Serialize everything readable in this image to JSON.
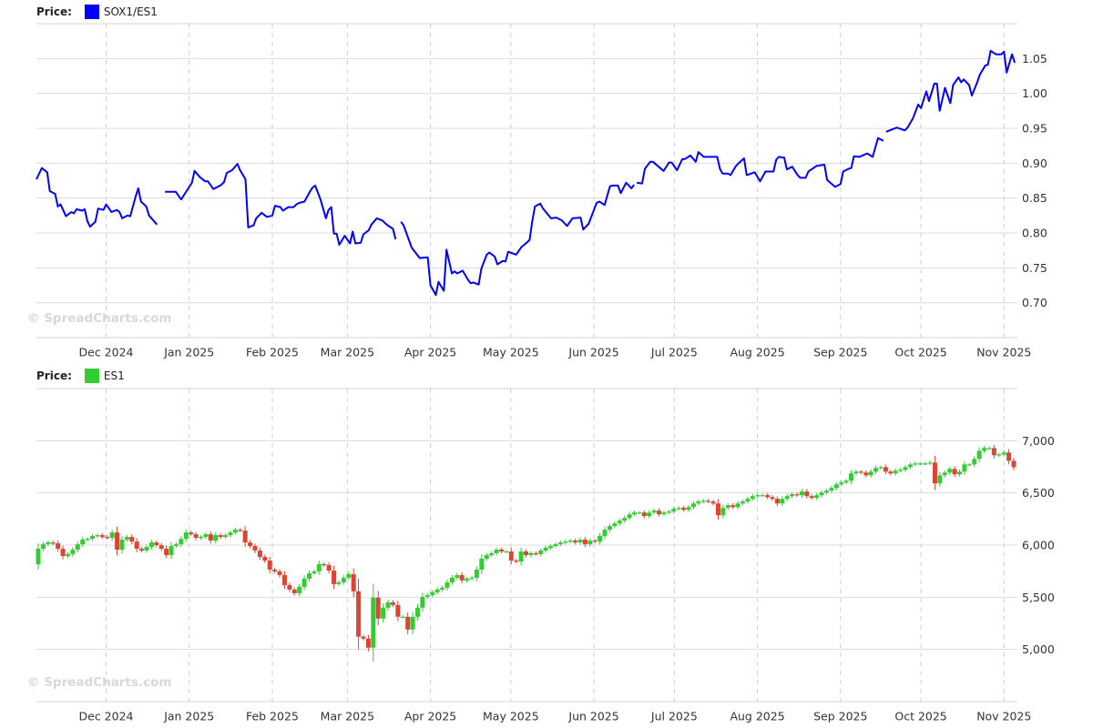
{
  "chart_data": [
    {
      "type": "line",
      "legend_label": "Price:",
      "title": "SOX1/ES1",
      "color": "#0000ff",
      "watermark": "© SpreadCharts.com",
      "start_date": "2024-11-05",
      "end_date": "2025-11-06",
      "x_unit": "days since start_date",
      "ylim": [
        0.65,
        1.1
      ],
      "y_ticks": [
        {
          "value": 0.7,
          "label": "0.70"
        },
        {
          "value": 0.75,
          "label": "0.75"
        },
        {
          "value": 0.8,
          "label": "0.80"
        },
        {
          "value": 0.85,
          "label": "0.85"
        },
        {
          "value": 0.9,
          "label": "0.90"
        },
        {
          "value": 0.95,
          "label": "0.95"
        },
        {
          "value": 1.0,
          "label": "1.00"
        },
        {
          "value": 1.05,
          "label": "1.05"
        }
      ],
      "x_ticks": [
        {
          "date": "2024-12-01",
          "label": "Dec 2024"
        },
        {
          "date": "2025-01-01",
          "label": "Jan 2025"
        },
        {
          "date": "2025-02-01",
          "label": "Feb 2025"
        },
        {
          "date": "2025-03-01",
          "label": "Mar 2025"
        },
        {
          "date": "2025-04-01",
          "label": "Apr 2025"
        },
        {
          "date": "2025-05-01",
          "label": "May 2025"
        },
        {
          "date": "2025-06-01",
          "label": "Jun 2025"
        },
        {
          "date": "2025-07-01",
          "label": "Jul 2025"
        },
        {
          "date": "2025-08-01",
          "label": "Aug 2025"
        },
        {
          "date": "2025-09-01",
          "label": "Sep 2025"
        },
        {
          "date": "2025-10-01",
          "label": "Oct 2025"
        },
        {
          "date": "2025-11-01",
          "label": "Nov 2025"
        }
      ],
      "segments": [
        [
          [
            0,
            0.877
          ],
          [
            2,
            0.893
          ],
          [
            4,
            0.887
          ],
          [
            5,
            0.86
          ],
          [
            7,
            0.856
          ],
          [
            8,
            0.838
          ],
          [
            9,
            0.841
          ],
          [
            11,
            0.824
          ],
          [
            13,
            0.83
          ],
          [
            14,
            0.828
          ],
          [
            15,
            0.834
          ],
          [
            17,
            0.832
          ],
          [
            18,
            0.834
          ],
          [
            19,
            0.817
          ],
          [
            20,
            0.809
          ],
          [
            22,
            0.816
          ],
          [
            23,
            0.835
          ],
          [
            25,
            0.833
          ],
          [
            26,
            0.841
          ],
          [
            28,
            0.83
          ],
          [
            30,
            0.833
          ],
          [
            31,
            0.83
          ],
          [
            32,
            0.821
          ],
          [
            34,
            0.825
          ],
          [
            35,
            0.824
          ],
          [
            37,
            0.852
          ],
          [
            38,
            0.864
          ],
          [
            39,
            0.845
          ],
          [
            41,
            0.838
          ],
          [
            42,
            0.825
          ],
          [
            45,
            0.812
          ]
        ],
        [
          [
            48,
            0.859
          ],
          [
            52,
            0.859
          ],
          [
            54,
            0.848
          ],
          [
            56,
            0.86
          ],
          [
            58,
            0.872
          ],
          [
            59,
            0.889
          ],
          [
            61,
            0.88
          ],
          [
            63,
            0.874
          ],
          [
            64,
            0.874
          ],
          [
            66,
            0.863
          ],
          [
            67,
            0.865
          ],
          [
            69,
            0.869
          ],
          [
            70,
            0.873
          ],
          [
            71,
            0.886
          ],
          [
            73,
            0.89
          ],
          [
            75,
            0.899
          ],
          [
            76,
            0.89
          ],
          [
            78,
            0.877
          ],
          [
            79,
            0.808
          ],
          [
            81,
            0.811
          ],
          [
            82,
            0.821
          ],
          [
            84,
            0.829
          ],
          [
            86,
            0.823
          ],
          [
            88,
            0.825
          ],
          [
            89,
            0.839
          ],
          [
            91,
            0.837
          ],
          [
            92,
            0.832
          ],
          [
            94,
            0.837
          ],
          [
            96,
            0.837
          ],
          [
            97,
            0.841
          ],
          [
            98,
            0.843
          ],
          [
            100,
            0.845
          ],
          [
            102,
            0.859
          ],
          [
            103,
            0.865
          ],
          [
            104,
            0.868
          ],
          [
            106,
            0.848
          ],
          [
            108,
            0.821
          ],
          [
            109,
            0.833
          ],
          [
            110,
            0.837
          ],
          [
            111,
            0.799
          ],
          [
            112,
            0.799
          ],
          [
            113,
            0.783
          ],
          [
            115,
            0.796
          ],
          [
            117,
            0.785
          ],
          [
            118,
            0.802
          ],
          [
            119,
            0.785
          ],
          [
            121,
            0.786
          ],
          [
            122,
            0.798
          ],
          [
            124,
            0.804
          ],
          [
            125,
            0.812
          ],
          [
            127,
            0.821
          ],
          [
            129,
            0.818
          ],
          [
            131,
            0.811
          ],
          [
            133,
            0.806
          ],
          [
            134,
            0.791
          ]
        ],
        [
          [
            136,
            0.816
          ],
          [
            137,
            0.811
          ],
          [
            140,
            0.779
          ],
          [
            143,
            0.764
          ],
          [
            146,
            0.765
          ],
          [
            147,
            0.725
          ],
          [
            149,
            0.711
          ],
          [
            150,
            0.73
          ],
          [
            152,
            0.717
          ],
          [
            153,
            0.776
          ],
          [
            155,
            0.742
          ],
          [
            156,
            0.745
          ],
          [
            157,
            0.742
          ],
          [
            159,
            0.746
          ],
          [
            161,
            0.733
          ],
          [
            162,
            0.728
          ],
          [
            163,
            0.729
          ],
          [
            165,
            0.726
          ],
          [
            166,
            0.749
          ],
          [
            168,
            0.769
          ],
          [
            169,
            0.772
          ],
          [
            171,
            0.766
          ],
          [
            172,
            0.755
          ],
          [
            174,
            0.76
          ],
          [
            175,
            0.759
          ],
          [
            176,
            0.773
          ],
          [
            179,
            0.769
          ],
          [
            181,
            0.78
          ],
          [
            182,
            0.783
          ],
          [
            184,
            0.79
          ],
          [
            185,
            0.817
          ],
          [
            186,
            0.838
          ],
          [
            188,
            0.842
          ],
          [
            189,
            0.835
          ],
          [
            192,
            0.821
          ],
          [
            194,
            0.822
          ],
          [
            196,
            0.818
          ],
          [
            198,
            0.81
          ],
          [
            200,
            0.821
          ],
          [
            203,
            0.822
          ],
          [
            204,
            0.805
          ],
          [
            206,
            0.813
          ],
          [
            208,
            0.833
          ],
          [
            209,
            0.843
          ],
          [
            210,
            0.845
          ],
          [
            212,
            0.84
          ],
          [
            214,
            0.867
          ],
          [
            215,
            0.868
          ],
          [
            217,
            0.868
          ],
          [
            218,
            0.857
          ],
          [
            220,
            0.872
          ],
          [
            222,
            0.864
          ],
          [
            223,
            0.869
          ]
        ],
        [
          [
            224,
            0.872
          ],
          [
            226,
            0.871
          ],
          [
            227,
            0.892
          ],
          [
            229,
            0.902
          ],
          [
            230,
            0.902
          ],
          [
            234,
            0.889
          ],
          [
            236,
            0.901
          ],
          [
            237,
            0.901
          ],
          [
            239,
            0.89
          ],
          [
            241,
            0.906
          ],
          [
            242,
            0.906
          ],
          [
            244,
            0.911
          ],
          [
            246,
            0.902
          ],
          [
            247,
            0.916
          ],
          [
            249,
            0.909
          ],
          [
            254,
            0.909
          ],
          [
            255,
            0.892
          ],
          [
            256,
            0.885
          ],
          [
            258,
            0.885
          ],
          [
            259,
            0.883
          ],
          [
            261,
            0.896
          ],
          [
            262,
            0.9
          ],
          [
            264,
            0.907
          ],
          [
            265,
            0.883
          ],
          [
            268,
            0.887
          ],
          [
            270,
            0.874
          ],
          [
            272,
            0.888
          ],
          [
            275,
            0.888
          ],
          [
            276,
            0.905
          ],
          [
            277,
            0.909
          ],
          [
            279,
            0.908
          ],
          [
            280,
            0.891
          ],
          [
            282,
            0.895
          ],
          [
            284,
            0.883
          ],
          [
            285,
            0.879
          ],
          [
            287,
            0.879
          ],
          [
            288,
            0.888
          ],
          [
            291,
            0.896
          ],
          [
            294,
            0.898
          ],
          [
            295,
            0.876
          ],
          [
            298,
            0.866
          ],
          [
            300,
            0.87
          ],
          [
            301,
            0.888
          ],
          [
            303,
            0.892
          ],
          [
            304,
            0.893
          ],
          [
            305,
            0.91
          ],
          [
            307,
            0.909
          ],
          [
            310,
            0.914
          ],
          [
            312,
            0.909
          ],
          [
            314,
            0.936
          ],
          [
            316,
            0.932
          ]
        ],
        [
          [
            317,
            0.945
          ],
          [
            321,
            0.951
          ],
          [
            324,
            0.947
          ],
          [
            325,
            0.951
          ],
          [
            327,
            0.964
          ],
          [
            329,
            0.984
          ],
          [
            330,
            0.979
          ],
          [
            332,
            1.003
          ],
          [
            333,
            0.989
          ],
          [
            335,
            1.014
          ],
          [
            336,
            1.014
          ],
          [
            337,
            0.975
          ],
          [
            339,
            1.008
          ],
          [
            341,
            0.986
          ],
          [
            342,
            1.012
          ],
          [
            344,
            1.023
          ],
          [
            345,
            1.016
          ],
          [
            346,
            1.02
          ],
          [
            348,
            1.012
          ],
          [
            349,
            0.997
          ],
          [
            351,
            1.016
          ],
          [
            352,
            1.027
          ],
          [
            354,
            1.04
          ],
          [
            355,
            1.041
          ],
          [
            356,
            1.061
          ],
          [
            358,
            1.056
          ],
          [
            360,
            1.056
          ],
          [
            361,
            1.06
          ],
          [
            362,
            1.03
          ],
          [
            364,
            1.056
          ],
          [
            365,
            1.044
          ]
        ]
      ]
    },
    {
      "type": "candlestick",
      "legend_label": "Price:",
      "title": "ES1",
      "color": "#33cc33",
      "up_color": "#33cc33",
      "down_color": "#dd4433",
      "watermark": "© SpreadCharts.com",
      "start_date": "2024-11-05",
      "end_date": "2025-11-06",
      "ylim": [
        4500,
        7500
      ],
      "y_ticks": [
        {
          "value": 5000,
          "label": "5,000"
        },
        {
          "value": 5500,
          "label": "5,500"
        },
        {
          "value": 6000,
          "label": "6,000"
        },
        {
          "value": 6500,
          "label": "6,500"
        },
        {
          "value": 7000,
          "label": "7,000"
        }
      ],
      "x_ticks": [
        {
          "date": "2024-12-01",
          "label": "Dec 2024"
        },
        {
          "date": "2025-01-01",
          "label": "Jan 2025"
        },
        {
          "date": "2025-02-01",
          "label": "Feb 2025"
        },
        {
          "date": "2025-03-01",
          "label": "Mar 2025"
        },
        {
          "date": "2025-04-01",
          "label": "Apr 2025"
        },
        {
          "date": "2025-05-01",
          "label": "May 2025"
        },
        {
          "date": "2025-06-01",
          "label": "Jun 2025"
        },
        {
          "date": "2025-07-01",
          "label": "Jul 2025"
        },
        {
          "date": "2025-08-01",
          "label": "Aug 2025"
        },
        {
          "date": "2025-09-01",
          "label": "Sep 2025"
        },
        {
          "date": "2025-10-01",
          "label": "Oct 2025"
        },
        {
          "date": "2025-11-01",
          "label": "Nov 2025"
        }
      ],
      "first_open": 5817,
      "closes": [
        5965,
        6008,
        6025,
        6017,
        5965,
        5895,
        5913,
        5956,
        6008,
        6052,
        6060,
        6087,
        6095,
        6078,
        6069,
        6121,
        5956,
        6052,
        6078,
        6034,
        5965,
        5948,
        5982,
        6025,
        5999,
        5965,
        5904,
        5991,
        6008,
        6060,
        6121,
        6104,
        6069,
        6078,
        6104,
        6043,
        6095,
        6078,
        6095,
        6121,
        6147,
        6139,
        6025,
        5991,
        5948,
        5887,
        5852,
        5765,
        5748,
        5713,
        5617,
        5574,
        5539,
        5600,
        5678,
        5730,
        5748,
        5817,
        5809,
        5756,
        5626,
        5643,
        5687,
        5722,
        5557,
        5122,
        5104,
        5017,
        5496,
        5296,
        5400,
        5452,
        5426,
        5313,
        5313,
        5191,
        5313,
        5400,
        5504,
        5522,
        5548,
        5574,
        5591,
        5643,
        5687,
        5713,
        5661,
        5678,
        5687,
        5765,
        5870,
        5904,
        5922,
        5956,
        5939,
        5939,
        5852,
        5843,
        5939,
        5904,
        5922,
        5913,
        5948,
        5974,
        5991,
        6008,
        6025,
        6034,
        6043,
        6025,
        6052,
        6008,
        6043,
        6034,
        6087,
        6147,
        6182,
        6208,
        6234,
        6260,
        6295,
        6312,
        6312,
        6278,
        6312,
        6330,
        6295,
        6312,
        6321,
        6347,
        6356,
        6338,
        6364,
        6399,
        6417,
        6425,
        6417,
        6399,
        6286,
        6356,
        6382,
        6364,
        6399,
        6417,
        6443,
        6469,
        6478,
        6478,
        6460,
        6443,
        6399,
        6443,
        6469,
        6487,
        6478,
        6513,
        6469,
        6452,
        6478,
        6504,
        6521,
        6547,
        6582,
        6600,
        6617,
        6687,
        6704,
        6695,
        6669,
        6704,
        6739,
        6747,
        6704,
        6687,
        6713,
        6721,
        6747,
        6773,
        6782,
        6782,
        6782,
        6791,
        6591,
        6669,
        6695,
        6730,
        6678,
        6704,
        6773,
        6773,
        6826,
        6904,
        6930,
        6930,
        6861,
        6869,
        6887,
        6808,
        6747
      ]
    }
  ]
}
